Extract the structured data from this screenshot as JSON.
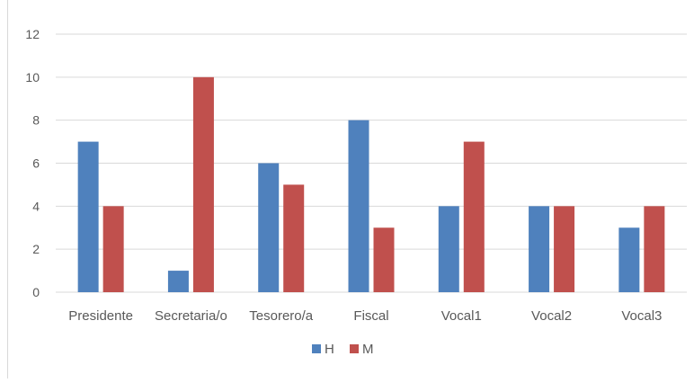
{
  "chart_data": {
    "type": "bar",
    "categories": [
      "Presidente",
      "Secretaria/o",
      "Tesorero/a",
      "Fiscal",
      "Vocal1",
      "Vocal2",
      "Vocal3"
    ],
    "series": [
      {
        "name": "H",
        "values": [
          7,
          1,
          6,
          8,
          4,
          4,
          3
        ],
        "color": "#4f81bd"
      },
      {
        "name": "M",
        "values": [
          4,
          10,
          5,
          3,
          7,
          4,
          4
        ],
        "color": "#c0504d"
      }
    ],
    "title": "",
    "xlabel": "",
    "ylabel": "",
    "ylim": [
      0,
      12
    ],
    "yticks": [
      0,
      2,
      4,
      6,
      8,
      10,
      12
    ],
    "grid": true,
    "legend_position": "bottom"
  },
  "colors": {
    "gridline": "#d9d9d9",
    "axis_text": "#595959"
  }
}
